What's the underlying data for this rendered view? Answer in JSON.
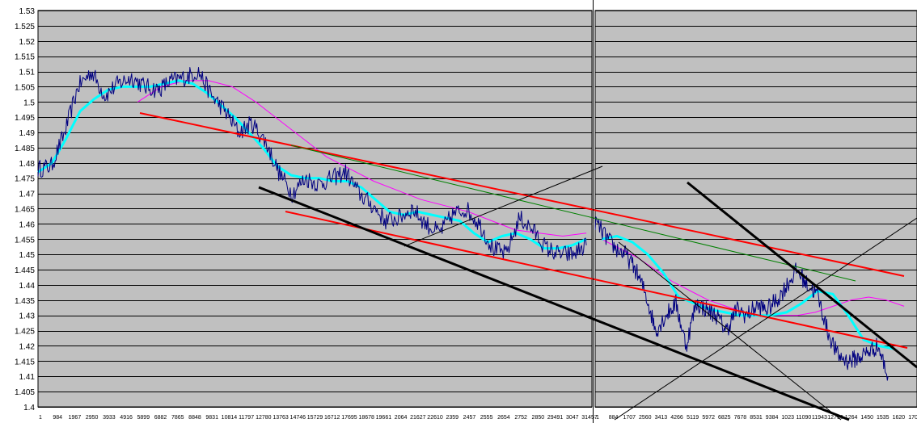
{
  "chart_data": [
    {
      "type": "line",
      "title": "",
      "xlabel": "",
      "ylabel": "",
      "ylim": [
        1.4,
        1.53
      ],
      "yticks": [
        "1.53",
        "1.525",
        "1.52",
        "1.515",
        "1.51",
        "1.505",
        "1.5",
        "1.495",
        "1.49",
        "1.485",
        "1.48",
        "1.475",
        "1.47",
        "1.465",
        "1.46",
        "1.455",
        "1.45",
        "1.445",
        "1.44",
        "1.435",
        "1.43",
        "1.425",
        "1.42",
        "1.415",
        "1.41",
        "1.405",
        "1.4"
      ],
      "xticks": [
        "1",
        "984",
        "1967",
        "2950",
        "3933",
        "4916",
        "5899",
        "6882",
        "7865",
        "8848",
        "9831",
        "10814",
        "11797",
        "12780",
        "13763",
        "14746",
        "15729",
        "16712",
        "17695",
        "18678",
        "19661",
        "2064",
        "21627",
        "22610",
        "2359",
        "2457",
        "2555",
        "2654",
        "2752",
        "2850",
        "29491",
        "3047",
        "31457"
      ],
      "grid": true,
      "background": "#c0c0c0",
      "colors": {
        "price": "#000080",
        "ma_fast": "#00ffff",
        "ma_slow": "#ff00ff",
        "channel": "#ff0000",
        "trend": "#000000",
        "trend_green": "#008000"
      },
      "series": [
        {
          "values": [
            1.478,
            1.479,
            1.49,
            1.505,
            1.51,
            1.502,
            1.506,
            1.508,
            1.505,
            1.504,
            1.507,
            1.508,
            1.51,
            1.502,
            1.497,
            1.49,
            1.493,
            1.487,
            1.477,
            1.47,
            1.475,
            1.473,
            1.475,
            1.477,
            1.47,
            1.466,
            1.461,
            1.462,
            1.465,
            1.46,
            1.457,
            1.463,
            1.465,
            1.46,
            1.452,
            1.45,
            1.462,
            1.458,
            1.452,
            1.45,
            1.45,
            1.453
          ]
        },
        {
          "values": [
            1.477,
            1.48,
            1.488,
            1.497,
            1.501,
            1.504,
            1.505,
            1.505,
            1.505,
            1.506,
            1.507,
            1.506,
            1.503,
            1.499,
            1.495,
            1.49,
            1.485,
            1.479,
            1.476,
            1.475,
            1.475,
            1.474,
            1.474,
            1.472,
            1.468,
            1.464,
            1.463,
            1.464,
            1.463,
            1.462,
            1.461,
            1.457,
            1.454,
            1.456,
            1.457,
            1.455,
            1.452,
            1.452,
            1.453,
            1.455
          ]
        },
        {
          "values": [
            1.5,
            1.505,
            1.507,
            1.507,
            1.505,
            1.5,
            1.494,
            1.488,
            1.482,
            1.478,
            1.474,
            1.471,
            1.468,
            1.466,
            1.464,
            1.461,
            1.458,
            1.457,
            1.456,
            1.457
          ]
        }
      ]
    },
    {
      "type": "line",
      "title": "",
      "xlabel": "",
      "ylabel": "",
      "xticks": [
        "1",
        "884",
        "1707",
        "2560",
        "3413",
        "4266",
        "5119",
        "5972",
        "6825",
        "7678",
        "8531",
        "9384",
        "1023",
        "11090",
        "11943",
        "12796",
        "1264",
        "1450",
        "1535",
        "1620",
        "1705"
      ],
      "grid": true,
      "series": [
        {
          "values": [
            1.461,
            1.456,
            1.452,
            1.45,
            1.445,
            1.437,
            1.425,
            1.43,
            1.434,
            1.42,
            1.434,
            1.432,
            1.43,
            1.425,
            1.432,
            1.43,
            1.433,
            1.432,
            1.435,
            1.44,
            1.445,
            1.44,
            1.437,
            1.425,
            1.417,
            1.415,
            1.416,
            1.418,
            1.42,
            1.41
          ]
        },
        {
          "values": [
            1.455,
            1.456,
            1.454,
            1.45,
            1.444,
            1.436,
            1.434,
            1.432,
            1.431,
            1.43,
            1.43,
            1.43,
            1.431,
            1.434,
            1.438,
            1.437,
            1.43,
            1.422,
            1.42,
            1.419
          ]
        },
        {
          "values": [
            1.455,
            1.452,
            1.449,
            1.445,
            1.441,
            1.438,
            1.435,
            1.433,
            1.431,
            1.43,
            1.43,
            1.43,
            1.431,
            1.433,
            1.435,
            1.436,
            1.435,
            1.433
          ]
        }
      ]
    }
  ]
}
